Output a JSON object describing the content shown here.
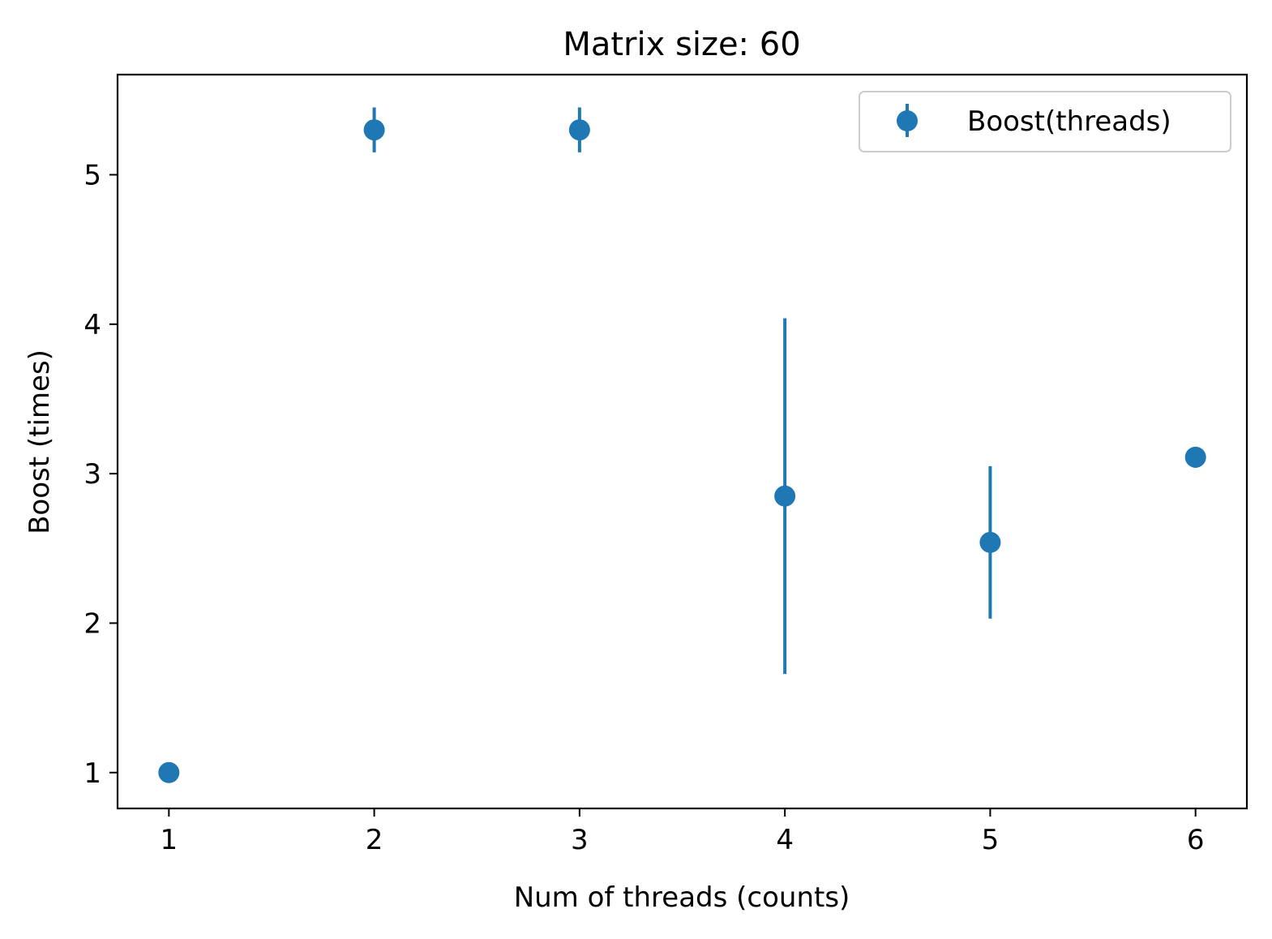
{
  "chart_data": {
    "type": "scatter",
    "title": "Matrix size: 60",
    "xlabel": "Num of threads (counts)",
    "ylabel": "Boost (times)",
    "xlim": [
      0.75,
      6.25
    ],
    "ylim": [
      0.76,
      5.67
    ],
    "xticks": [
      1,
      2,
      3,
      4,
      5,
      6
    ],
    "yticks": [
      1,
      2,
      3,
      4,
      5
    ],
    "grid": false,
    "legend_position": "top-right",
    "color": "#1f77b4",
    "series": [
      {
        "name": "Boost(threads)",
        "x": [
          1,
          2,
          3,
          4,
          5,
          6
        ],
        "y": [
          1.0,
          5.3,
          5.3,
          2.85,
          2.54,
          3.11
        ],
        "yerr": [
          0.0,
          0.15,
          0.15,
          1.19,
          0.51,
          0.07
        ]
      }
    ]
  }
}
